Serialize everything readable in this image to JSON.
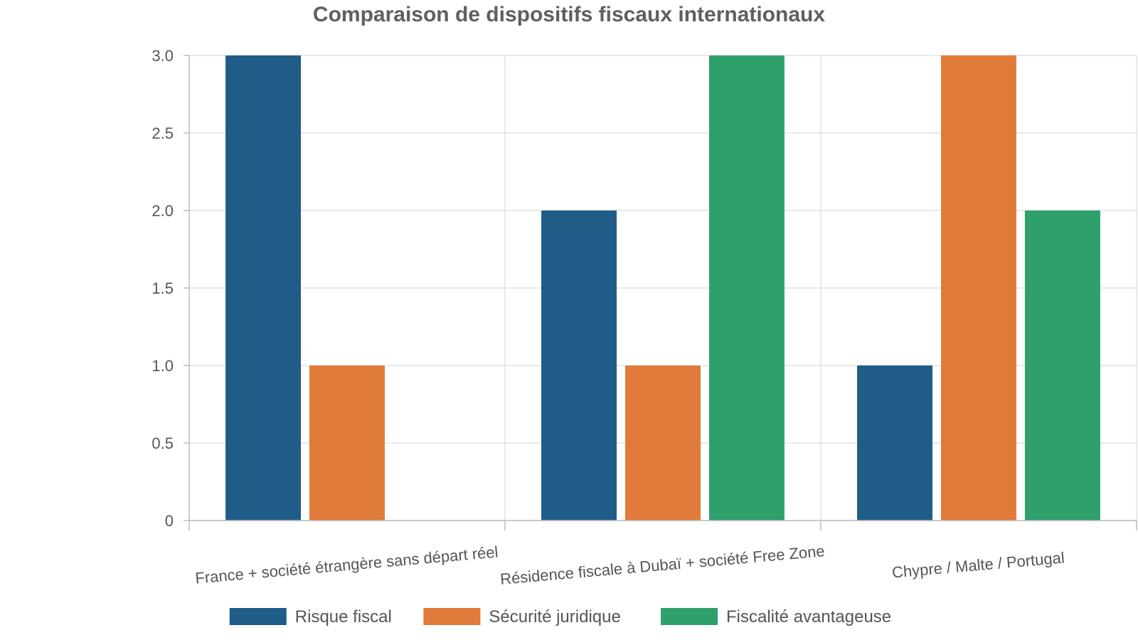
{
  "chart_data": {
    "type": "bar",
    "title": "Comparaison de dispositifs fiscaux internationaux",
    "xlabel": "",
    "ylabel": "",
    "categories": [
      "France + société étrangère sans départ réel",
      "Résidence fiscale à Dubaï + société Free Zone",
      "Chypre / Malte / Portugal"
    ],
    "series": [
      {
        "name": "Risque fiscal",
        "color": "#1f5c87",
        "values": [
          3,
          2,
          1
        ]
      },
      {
        "name": "Sécurité juridique",
        "color": "#e07b3a",
        "values": [
          1,
          1,
          3
        ]
      },
      {
        "name": "Fiscalité avantageuse",
        "color": "#2fa06b",
        "values": [
          0,
          3,
          2
        ]
      }
    ],
    "ylim": [
      0,
      3
    ],
    "yticks": [
      "0",
      "0.5",
      "1.0",
      "1.5",
      "2.0",
      "2.5",
      "3.0"
    ],
    "grid": true,
    "legend_position": "bottom"
  }
}
